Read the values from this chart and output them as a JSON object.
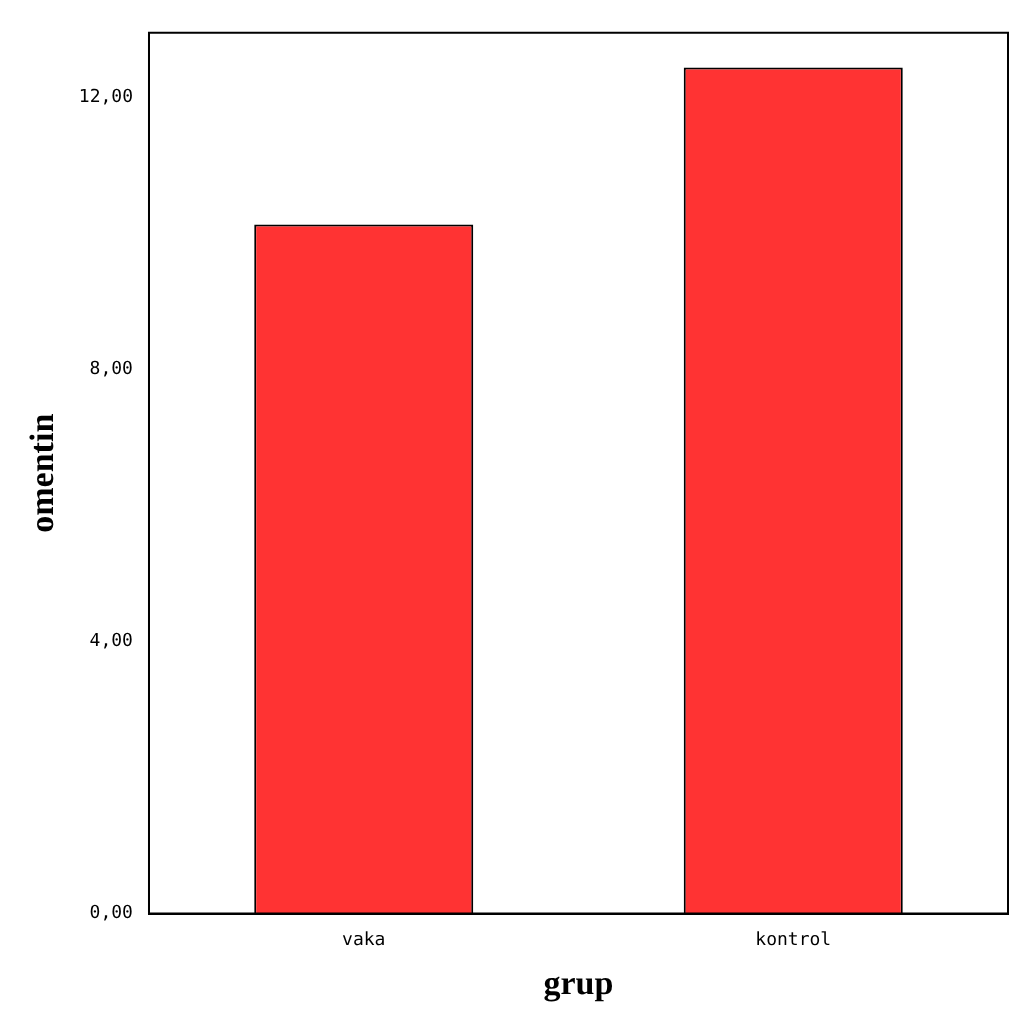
{
  "chart_data": {
    "type": "bar",
    "xlabel": "grup",
    "ylabel": "omentin",
    "categories": [
      "vaka",
      "kontrol"
    ],
    "values": [
      10.13,
      12.44
    ],
    "color": "#ff3333",
    "ylim": [
      0,
      12.95
    ],
    "yticks": [
      {
        "value": 0,
        "label": "0,00"
      },
      {
        "value": 4,
        "label": "4,00"
      },
      {
        "value": 8,
        "label": "8,00"
      },
      {
        "value": 12,
        "label": "12,00"
      }
    ],
    "grid": false
  }
}
